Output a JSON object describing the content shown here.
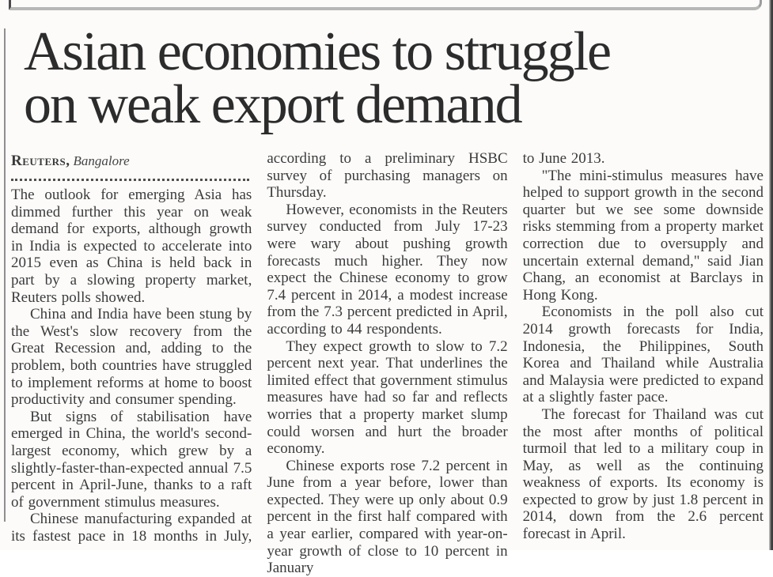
{
  "article": {
    "headline": "Asian economies to struggle on weak export demand",
    "headline_lines": [
      "Asian economies to struggle",
      "on weak export demand"
    ],
    "byline": {
      "agency": "Reuters,",
      "location": "Bangalore"
    },
    "columns": [
      {
        "paragraphs": [
          {
            "indent": false,
            "continues": false,
            "text": "The outlook for emerging Asia has dimmed further this year on weak demand for exports, although growth in India is expected to accelerate into 2015 even as China is held back in part by a slowing property market, Reuters polls showed."
          },
          {
            "indent": true,
            "continues": false,
            "text": "China and India have been stung by the West's slow recovery from the Great Recession and, adding to the problem, both countries have struggled to implement reforms at home to boost productivity and consumer spending."
          },
          {
            "indent": true,
            "continues": false,
            "text": "But signs of stabilisation have emerged in China, the world's second-largest economy, which grew by a slightly-faster-than-expected annual 7.5 percent in April-June, thanks to a raft of government stimulus measures."
          },
          {
            "indent": true,
            "continues": true,
            "text": "Chinese manufacturing expanded at its fastest pace in 18 months in July,"
          }
        ]
      },
      {
        "paragraphs": [
          {
            "indent": false,
            "continues": false,
            "text": "according to a preliminary HSBC survey of purchasing managers on Thursday."
          },
          {
            "indent": true,
            "continues": false,
            "text": "However, economists in the Reuters survey conducted from July 17-23 were wary about pushing growth forecasts much higher. They now expect the Chinese economy to grow 7.4 percent in 2014, a modest increase from the 7.3 percent predicted in April, according to 44 respondents."
          },
          {
            "indent": true,
            "continues": false,
            "text": "They expect growth to slow to 7.2 percent next year. That underlines the limited effect that government stimulus measures have had so far and reflects worries that a property market slump could worsen and hurt the broader economy."
          },
          {
            "indent": true,
            "continues": true,
            "text": "Chinese exports rose 7.2 percent in June from a year before, lower than expected. They were up only about 0.9 percent in the first half compared with a year earlier, compared with year-on-year growth of close to 10 percent in January"
          }
        ]
      },
      {
        "paragraphs": [
          {
            "indent": false,
            "continues": false,
            "text": "to June 2013."
          },
          {
            "indent": true,
            "continues": false,
            "text": "\"The mini-stimulus measures have helped to support growth in the second quarter but we see some downside risks stemming from a property market correction due to oversupply and uncertain external demand,\" said Jian Chang, an economist at Barclays in Hong Kong."
          },
          {
            "indent": true,
            "continues": false,
            "text": "Economists in the poll also cut 2014 growth forecasts for India, Indonesia, the Philippines, South Korea and Thailand while Australia and Malaysia were predicted to expand at a slightly faster pace."
          },
          {
            "indent": true,
            "continues": false,
            "text": "The forecast for Thailand was cut the most after months of political turmoil that led to a military coup in May, as well as the continuing weakness of exports. Its economy is expected to grow by just 1.8 percent in 2014, down from the 2.6 percent forecast in April."
          }
        ]
      }
    ]
  },
  "colors": {
    "headline": "#2c2c2c",
    "body_text": "#3b3b3b",
    "background": "#fcfbfa",
    "rule_gray": "#8f8f8f",
    "edge_dark": "#3d3d3d"
  }
}
